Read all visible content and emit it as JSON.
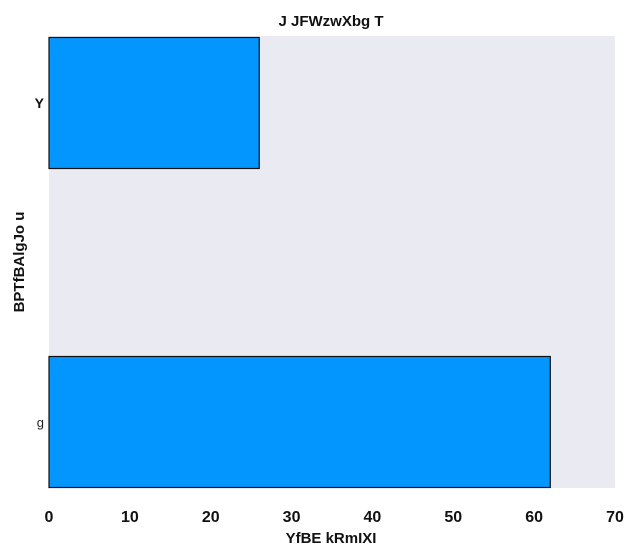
{
  "chart_data": {
    "type": "bar",
    "orientation": "horizontal",
    "title": "J JFWzwXbg T",
    "xlabel": "YfBE kRmIXI",
    "ylabel": "BPTfBAlgJo u",
    "categories": [
      "Y",
      "g"
    ],
    "values": [
      26,
      62
    ],
    "xlim": [
      0,
      70
    ],
    "xticks": [
      0,
      10,
      20,
      30,
      40,
      50,
      60,
      70
    ],
    "grid": false,
    "colors": {
      "bar": "#0496ff",
      "bar_edge": "#111111",
      "plot_bg": "#eaeaf2"
    }
  }
}
